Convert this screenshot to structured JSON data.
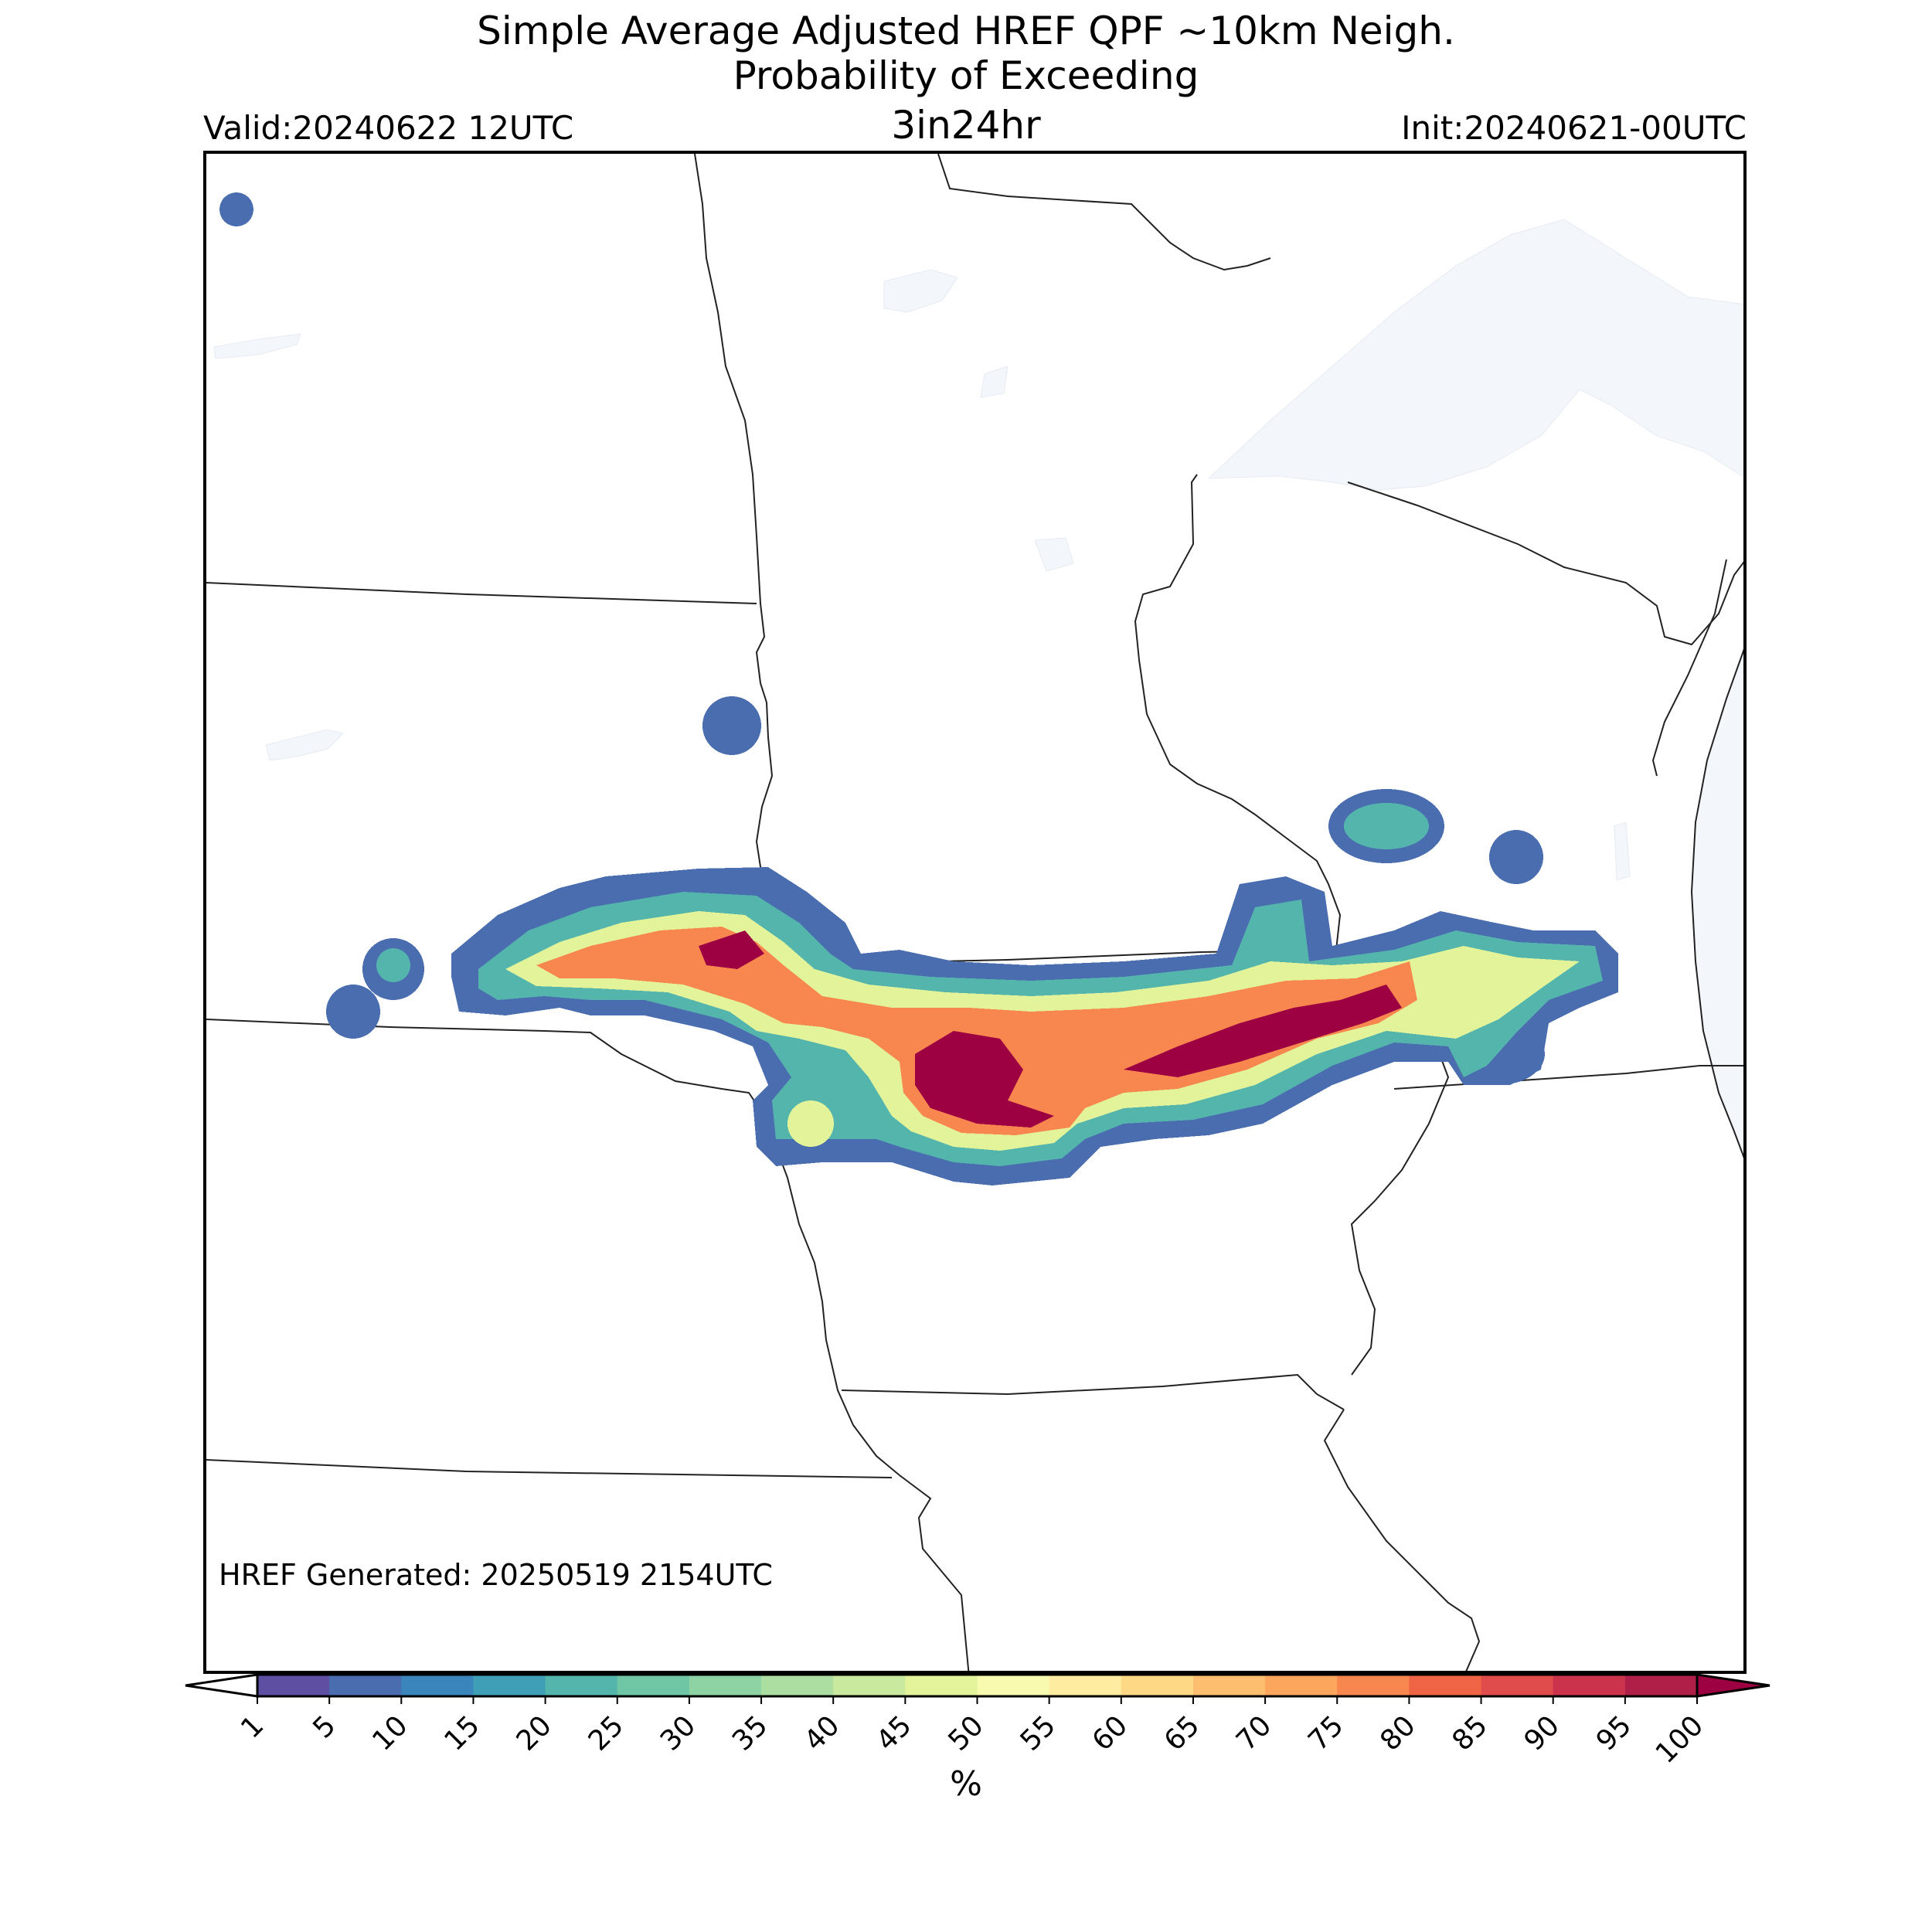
{
  "title": {
    "line1": "Simple Average Adjusted HREF QPF ~10km Neigh.",
    "line2": "Probability of Exceeding",
    "line3": "3in24hr"
  },
  "valid_label": "Valid:20240622 12UTC",
  "init_label": "Init:20240621-00UTC",
  "generated_label": "HREF Generated: 20250519 2154UTC",
  "colorbar": {
    "levels": [
      1,
      5,
      10,
      15,
      20,
      25,
      30,
      35,
      40,
      45,
      50,
      55,
      60,
      65,
      70,
      75,
      80,
      85,
      90,
      95,
      100
    ],
    "tick_labels": [
      "1",
      "5",
      "10",
      "15",
      "20",
      "25",
      "30",
      "35",
      "40",
      "45",
      "50",
      "55",
      "60",
      "65",
      "70",
      "75",
      "80",
      "85",
      "90",
      "95",
      "100"
    ],
    "colors": [
      "#5e4fa2",
      "#4a6db0",
      "#3a86bc",
      "#3f9fb6",
      "#54b5ad",
      "#6fc6a5",
      "#8dd3a4",
      "#acdea2",
      "#c9e99e",
      "#e3f39a",
      "#f7faaf",
      "#feeda1",
      "#fed985",
      "#fdbf6f",
      "#fca55d",
      "#f7874f",
      "#ee6444",
      "#df4c4b",
      "#cb334c",
      "#b01f48",
      "#9e0142"
    ],
    "extend": "both",
    "label": "%"
  }
}
